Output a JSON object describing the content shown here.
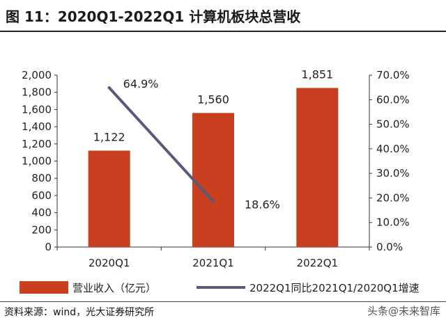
{
  "header": {
    "title": "图 11：2020Q1-2022Q1 计算机板块总营收"
  },
  "footer": {
    "source": "资料来源：wind，光大证券研究所",
    "watermark": "头条@未来智库"
  },
  "colors": {
    "bar": "#C8401F",
    "line": "#5A5A78"
  },
  "chart_data": {
    "type": "bar",
    "categories": [
      "2020Q1",
      "2021Q1",
      "2022Q1"
    ],
    "series": [
      {
        "name": "营业收入（亿元）",
        "type": "bar",
        "axis": "left",
        "values": [
          1122,
          1560,
          1851
        ],
        "labels": [
          "1,122",
          "1,560",
          "1,851"
        ]
      },
      {
        "name": "2022Q1同比2021Q1/2020Q1增速",
        "type": "line",
        "axis": "right",
        "values": [
          64.9,
          18.6,
          null
        ],
        "labels": [
          "64.9%",
          "18.6%",
          null
        ]
      }
    ],
    "ylim": [
      0,
      2000
    ],
    "yticks": [
      "0",
      "200",
      "400",
      "600",
      "800",
      "1,000",
      "1,200",
      "1,400",
      "1,600",
      "1,800",
      "2,000"
    ],
    "y2lim": [
      0,
      70
    ],
    "y2ticks": [
      "0.0%",
      "10.0%",
      "20.0%",
      "30.0%",
      "40.0%",
      "50.0%",
      "60.0%",
      "70.0%"
    ],
    "legend_position": "bottom",
    "grid": false
  }
}
